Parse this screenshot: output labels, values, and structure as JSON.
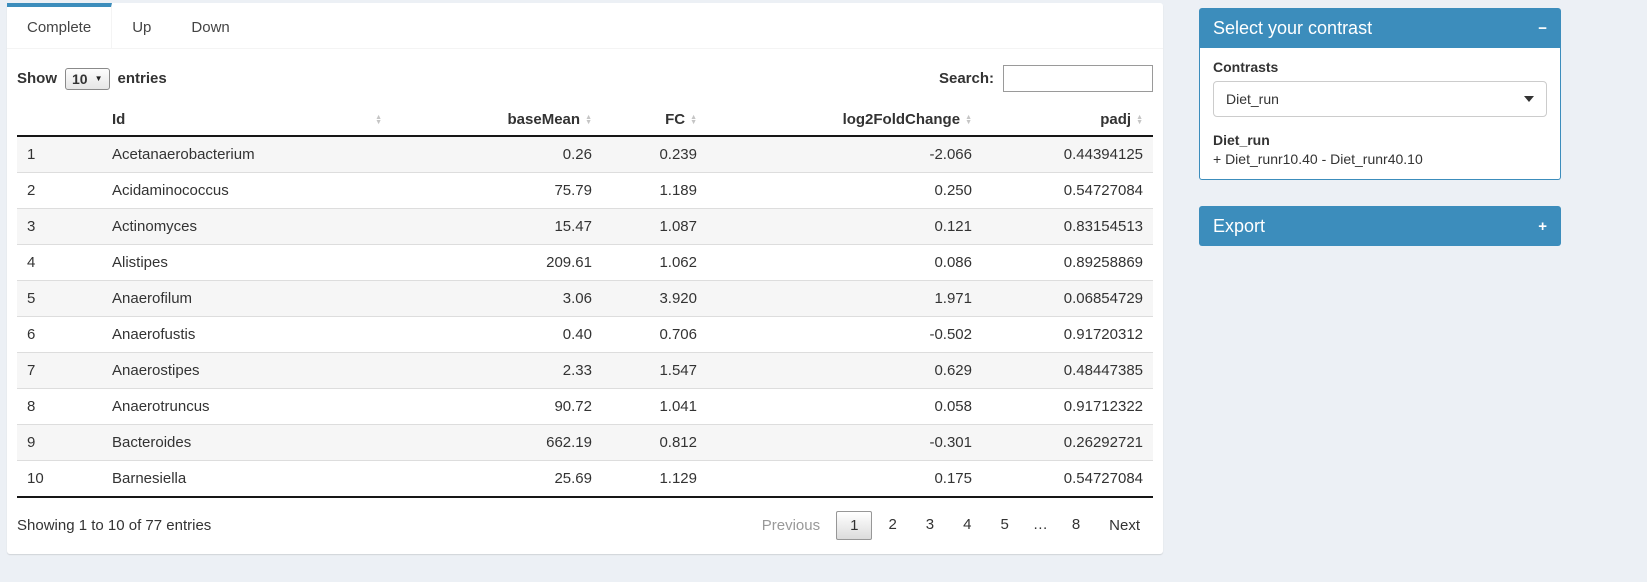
{
  "colors": {
    "primary": "#3c8dbc",
    "page_bg": "#ecf0f5"
  },
  "icons": {
    "sort_asc": "▲",
    "sort_desc": "▼",
    "select_arrow": "▼",
    "collapse_minus": "−",
    "expand_plus": "+"
  },
  "tabs": [
    {
      "label": "Complete"
    },
    {
      "label": "Up"
    },
    {
      "label": "Down"
    }
  ],
  "table_controls": {
    "show_label": "Show",
    "page_length": "10",
    "entries_label": "entries",
    "search_label": "Search:",
    "search_value": ""
  },
  "table": {
    "columns": [
      "",
      "Id",
      "baseMean",
      "FC",
      "log2FoldChange",
      "padj"
    ],
    "rows": [
      {
        "n": "1",
        "id": "Acetanaerobacterium",
        "baseMean": "0.26",
        "fc": "0.239",
        "log2fc": "-2.066",
        "padj": "0.44394125"
      },
      {
        "n": "2",
        "id": "Acidaminococcus",
        "baseMean": "75.79",
        "fc": "1.189",
        "log2fc": "0.250",
        "padj": "0.54727084"
      },
      {
        "n": "3",
        "id": "Actinomyces",
        "baseMean": "15.47",
        "fc": "1.087",
        "log2fc": "0.121",
        "padj": "0.83154513"
      },
      {
        "n": "4",
        "id": "Alistipes",
        "baseMean": "209.61",
        "fc": "1.062",
        "log2fc": "0.086",
        "padj": "0.89258869"
      },
      {
        "n": "5",
        "id": "Anaerofilum",
        "baseMean": "3.06",
        "fc": "3.920",
        "log2fc": "1.971",
        "padj": "0.06854729"
      },
      {
        "n": "6",
        "id": "Anaerofustis",
        "baseMean": "0.40",
        "fc": "0.706",
        "log2fc": "-0.502",
        "padj": "0.91720312"
      },
      {
        "n": "7",
        "id": "Anaerostipes",
        "baseMean": "2.33",
        "fc": "1.547",
        "log2fc": "0.629",
        "padj": "0.48447385"
      },
      {
        "n": "8",
        "id": "Anaerotruncus",
        "baseMean": "90.72",
        "fc": "1.041",
        "log2fc": "0.058",
        "padj": "0.91712322"
      },
      {
        "n": "9",
        "id": "Bacteroides",
        "baseMean": "662.19",
        "fc": "0.812",
        "log2fc": "-0.301",
        "padj": "0.26292721"
      },
      {
        "n": "10",
        "id": "Barnesiella",
        "baseMean": "25.69",
        "fc": "1.129",
        "log2fc": "0.175",
        "padj": "0.54727084"
      }
    ]
  },
  "table_footer": {
    "info": "Showing 1 to 10 of 77 entries",
    "pagination": {
      "previous": "Previous",
      "pages": [
        "1",
        "2",
        "3",
        "4",
        "5",
        "…",
        "8"
      ],
      "current": "1",
      "next": "Next"
    }
  },
  "contrast_box": {
    "title": "Select your contrast",
    "contrasts_label": "Contrasts",
    "selected_contrast": "Diet_run",
    "contrast_name": "Diet_run",
    "contrast_formula": "+ Diet_runr10.40 - Diet_runr40.10"
  },
  "export_box": {
    "title": "Export"
  }
}
